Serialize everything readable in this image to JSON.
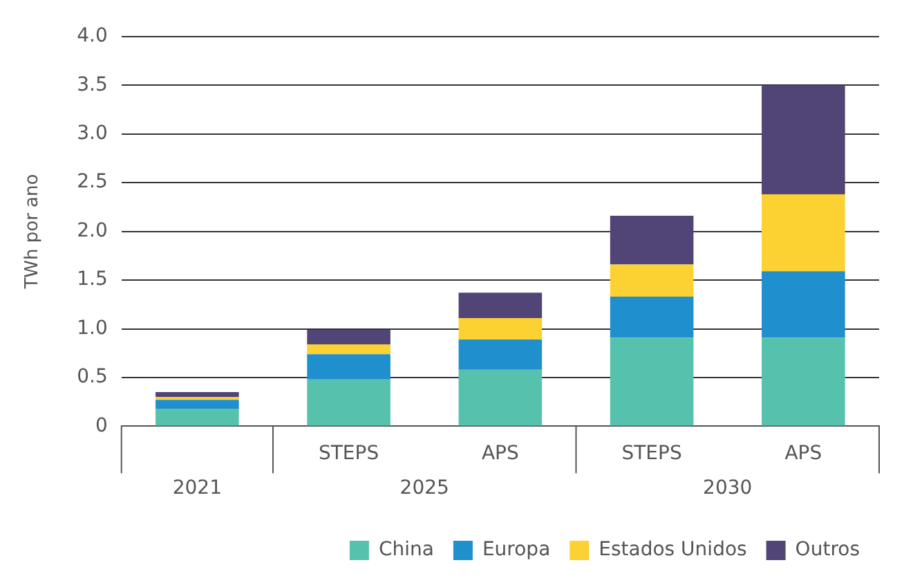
{
  "chart_data": {
    "type": "bar",
    "stacked": true,
    "ylabel": "TWh por ano",
    "categories": [
      null,
      "STEPS",
      "APS",
      "STEPS",
      "APS"
    ],
    "annotations": [
      "2021",
      "2025",
      "2030"
    ],
    "series": [
      {
        "name": "China",
        "color": "#56c2ad",
        "values": [
          0.18,
          0.48,
          0.58,
          0.91,
          0.91
        ]
      },
      {
        "name": "Europa",
        "color": "#1f8fce",
        "values": [
          0.09,
          0.26,
          0.31,
          0.42,
          0.68
        ]
      },
      {
        "name": "Estados Unidos",
        "color": "#fcd132",
        "values": [
          0.03,
          0.1,
          0.22,
          0.33,
          0.79
        ]
      },
      {
        "name": "Outros",
        "color": "#514476",
        "values": [
          0.05,
          0.15,
          0.26,
          0.5,
          1.12
        ]
      }
    ],
    "ylim": [
      0,
      4
    ],
    "yticks": [
      0,
      0.5,
      {
        "value": 1,
        "label": "1.0"
      },
      1.5,
      {
        "value": 2,
        "label": "2.0"
      },
      2.5,
      {
        "value": 3,
        "label": "3.0"
      },
      3.5,
      {
        "value": 4,
        "label": "4.0"
      }
    ],
    "grid": "y",
    "legend": "bottom right"
  }
}
